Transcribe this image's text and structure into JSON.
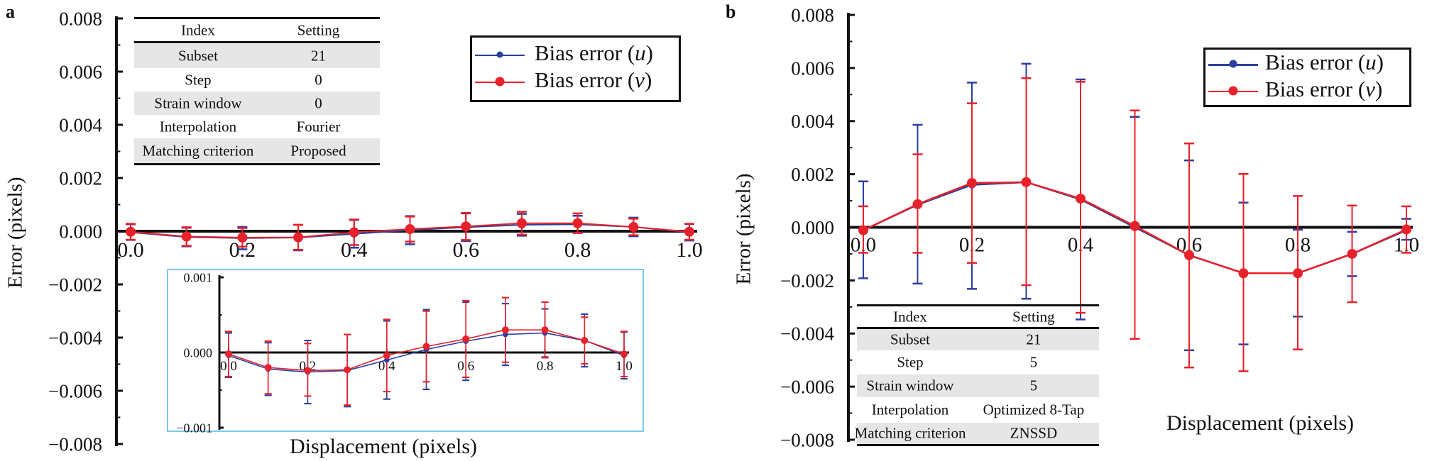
{
  "panels": {
    "a": "a",
    "b": "b"
  },
  "tables": {
    "a": {
      "header": [
        "Index",
        "Setting"
      ],
      "rows": [
        [
          "Subset",
          "21"
        ],
        [
          "Step",
          "0"
        ],
        [
          "Strain window",
          "0"
        ],
        [
          "Interpolation",
          "Fourier"
        ],
        [
          "Matching criterion",
          "Proposed"
        ]
      ]
    },
    "b": {
      "header": [
        "Index",
        "Setting"
      ],
      "rows": [
        [
          "Subset",
          "21"
        ],
        [
          "Step",
          "5"
        ],
        [
          "Strain window",
          "5"
        ],
        [
          "Interpolation",
          "Optimized 8-Tap"
        ],
        [
          "Matching criterion",
          "ZNSSD"
        ]
      ]
    }
  },
  "colors": {
    "u": "#2a3f9e",
    "v": "#e8212a",
    "inset_border": "#7ec8e8",
    "axis": "#111111"
  },
  "chart_data": [
    {
      "panel": "a",
      "type": "line",
      "xlabel": "Displacement (pixels)",
      "ylabel": "Error (pixels)",
      "xlim": [
        0,
        1
      ],
      "ylim": [
        -0.008,
        0.008
      ],
      "xticks": [
        "0.0",
        "0.2",
        "0.4",
        "0.6",
        "0.8",
        "1.0"
      ],
      "yticks": [
        "0.008",
        "0.006",
        "0.004",
        "0.002",
        "0.000",
        "−0.002",
        "−0.004",
        "−0.006",
        "−0.008"
      ],
      "legend": {
        "position": "top-right",
        "entries": [
          {
            "prefix": "Bias error (",
            "var": "u",
            "suffix": ")"
          },
          {
            "prefix": "Bias error (",
            "var": "v",
            "suffix": ")"
          }
        ]
      },
      "x": [
        0,
        0.1,
        0.2,
        0.3,
        0.4,
        0.5,
        0.6,
        0.7,
        0.8,
        0.9,
        1.0
      ],
      "series": [
        {
          "name": "Bias error (u)",
          "values": [
            -4e-05,
            -0.00022,
            -0.00026,
            -0.00024,
            -0.0001,
            4e-05,
            0.00015,
            0.00024,
            0.00026,
            0.00016,
            -4e-05
          ],
          "err_low": [
            -0.00033,
            -0.00057,
            -0.00068,
            -0.00072,
            -0.00062,
            -0.00049,
            -0.00037,
            -0.00017,
            -6e-05,
            -0.00019,
            -0.00035
          ],
          "err_high": [
            0.00026,
            0.00013,
            0.00016,
            0.00024,
            0.00042,
            0.00057,
            0.00067,
            0.00065,
            0.00058,
            0.00051,
            0.00027
          ]
        },
        {
          "name": "Bias error (v)",
          "values": [
            -2e-05,
            -0.0002,
            -0.00024,
            -0.00023,
            -4e-05,
            8e-05,
            0.00018,
            0.0003,
            0.0003,
            0.00016,
            -2e-05
          ],
          "err_low": [
            -0.00032,
            -0.00055,
            -0.00058,
            -0.0007,
            -0.00052,
            -0.00039,
            -0.00033,
            -0.00013,
            -7e-05,
            -0.00015,
            -0.00032
          ],
          "err_high": [
            0.00028,
            0.00015,
            0.00012,
            0.00024,
            0.00044,
            0.00055,
            0.00069,
            0.00073,
            0.00067,
            0.00047,
            0.00028
          ]
        }
      ],
      "inset": {
        "ylim": [
          -0.001,
          0.001
        ],
        "yticks": [
          "0.001",
          "0.000",
          "−0.001"
        ],
        "xticks": [
          "0.0",
          "0.2",
          "0.4",
          "0.6",
          "0.8",
          "1.0"
        ]
      }
    },
    {
      "panel": "b",
      "type": "line",
      "xlabel": "Displacement (pixels)",
      "ylabel": "Error (pixels)",
      "xlim": [
        0,
        1
      ],
      "ylim": [
        -0.008,
        0.008
      ],
      "xticks": [
        "0.0",
        "0.2",
        "0.4",
        "0.6",
        "0.8",
        "1.0"
      ],
      "yticks": [
        "0.008",
        "0.006",
        "0.004",
        "0.002",
        "0.000",
        "−0.002",
        "−0.004",
        "−0.006",
        "−0.008"
      ],
      "legend": {
        "position": "top-right",
        "entries": [
          {
            "prefix": "Bias error (",
            "var": "u",
            "suffix": ")"
          },
          {
            "prefix": "Bias error (",
            "var": "v",
            "suffix": ")"
          }
        ]
      },
      "x": [
        0,
        0.1,
        0.2,
        0.3,
        0.4,
        0.5,
        0.6,
        0.7,
        0.8,
        0.9,
        1.0
      ],
      "series": [
        {
          "name": "Bias error (u)",
          "values": [
            -0.00011,
            0.00085,
            0.0016,
            0.0017,
            0.00105,
            0.0,
            -0.00105,
            -0.00173,
            -0.00173,
            -0.001,
            -0.00011
          ],
          "err_low": [
            -0.00192,
            -0.00212,
            -0.00232,
            -0.00269,
            -0.00347,
            -0.0042,
            -0.00463,
            -0.00441,
            -0.00336,
            -0.00184,
            -0.00047
          ],
          "err_high": [
            0.00173,
            0.00386,
            0.00545,
            0.00616,
            0.00557,
            0.00416,
            0.00252,
            0.00093,
            -9e-05,
            -0.00017,
            0.00032
          ]
        },
        {
          "name": "Bias error (v)",
          "values": [
            -0.00011,
            0.00087,
            0.00167,
            0.0017,
            0.00108,
            5e-05,
            -0.00105,
            -0.00173,
            -0.00173,
            -0.001,
            -8e-05
          ],
          "err_low": [
            -0.00096,
            -0.00096,
            -0.00134,
            -0.00218,
            -0.00322,
            -0.0042,
            -0.00528,
            -0.00542,
            -0.0046,
            -0.00282,
            -0.00096
          ],
          "err_high": [
            0.00079,
            0.00275,
            0.00467,
            0.00562,
            0.00548,
            0.0044,
            0.00316,
            0.00201,
            0.00118,
            0.00082,
            0.00079
          ]
        }
      ]
    }
  ]
}
